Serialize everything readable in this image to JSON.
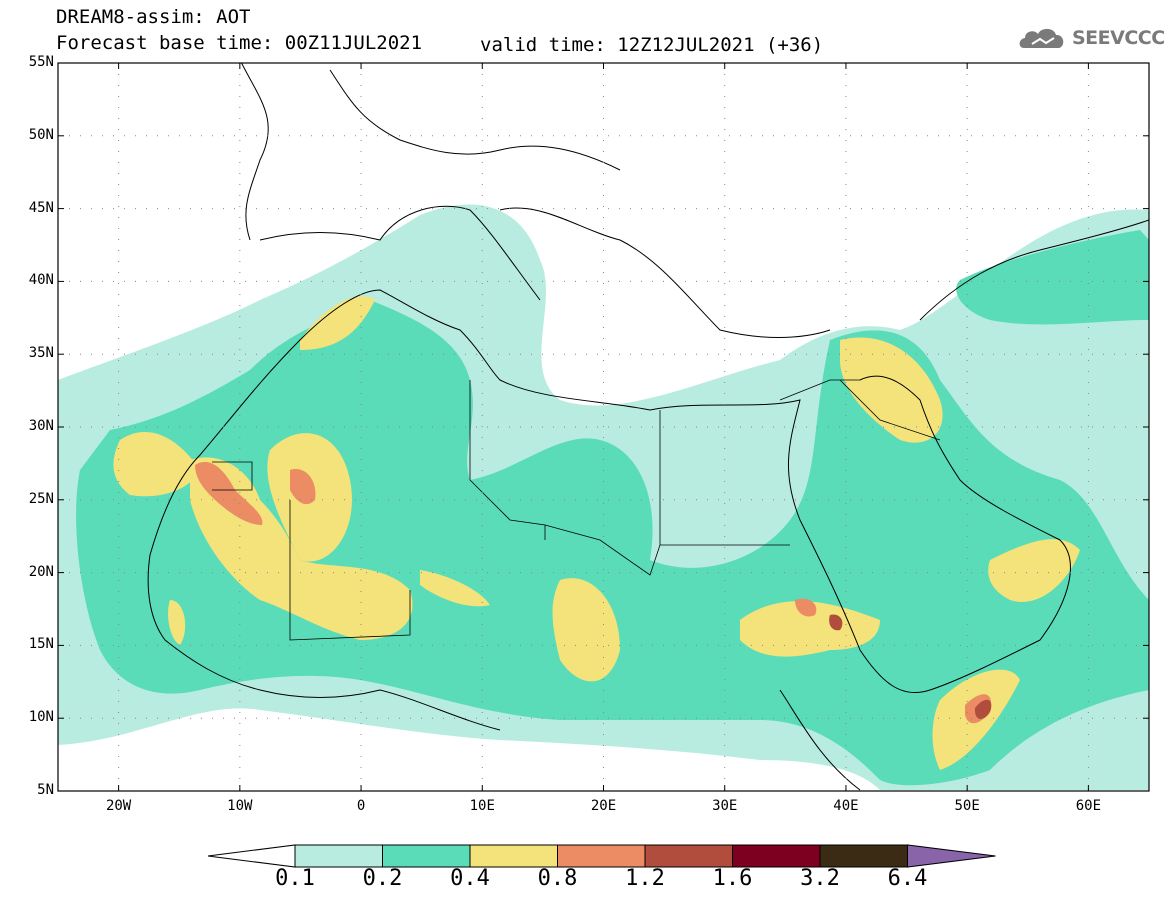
{
  "header": {
    "title": "DREAM8-assim: AOT",
    "base_time": "Forecast base time: 00Z11JUL2021",
    "valid_time": "valid time: 12Z12JUL2021 (+36)",
    "logo_text": "SEEVCCC"
  },
  "map": {
    "lon_range": [
      -25,
      65
    ],
    "lat_range": [
      5,
      55
    ],
    "lat_ticks": [
      {
        "value": 55,
        "label": "55N"
      },
      {
        "value": 50,
        "label": "50N"
      },
      {
        "value": 45,
        "label": "45N"
      },
      {
        "value": 40,
        "label": "40N"
      },
      {
        "value": 35,
        "label": "35N"
      },
      {
        "value": 30,
        "label": "30N"
      },
      {
        "value": 25,
        "label": "25N"
      },
      {
        "value": 20,
        "label": "20N"
      },
      {
        "value": 15,
        "label": "15N"
      },
      {
        "value": 10,
        "label": "10N"
      },
      {
        "value": 5,
        "label": "5N"
      }
    ],
    "lon_ticks": [
      {
        "value": -20,
        "label": "20W"
      },
      {
        "value": -10,
        "label": "10W"
      },
      {
        "value": 0,
        "label": "0"
      },
      {
        "value": 10,
        "label": "10E"
      },
      {
        "value": 20,
        "label": "20E"
      },
      {
        "value": 30,
        "label": "30E"
      },
      {
        "value": 40,
        "label": "40E"
      },
      {
        "value": 50,
        "label": "50E"
      },
      {
        "value": 60,
        "label": "60E"
      }
    ]
  },
  "colorbar": {
    "colors": [
      "#ffffff",
      "#b8ece0",
      "#5adcb8",
      "#f4e37a",
      "#eb8c64",
      "#b04d3c",
      "#7d0020",
      "#3b2a14",
      "#8a64a8"
    ],
    "labels": [
      "0.1",
      "0.2",
      "0.4",
      "0.8",
      "1.2",
      "1.6",
      "3.2",
      "6.4"
    ]
  }
}
